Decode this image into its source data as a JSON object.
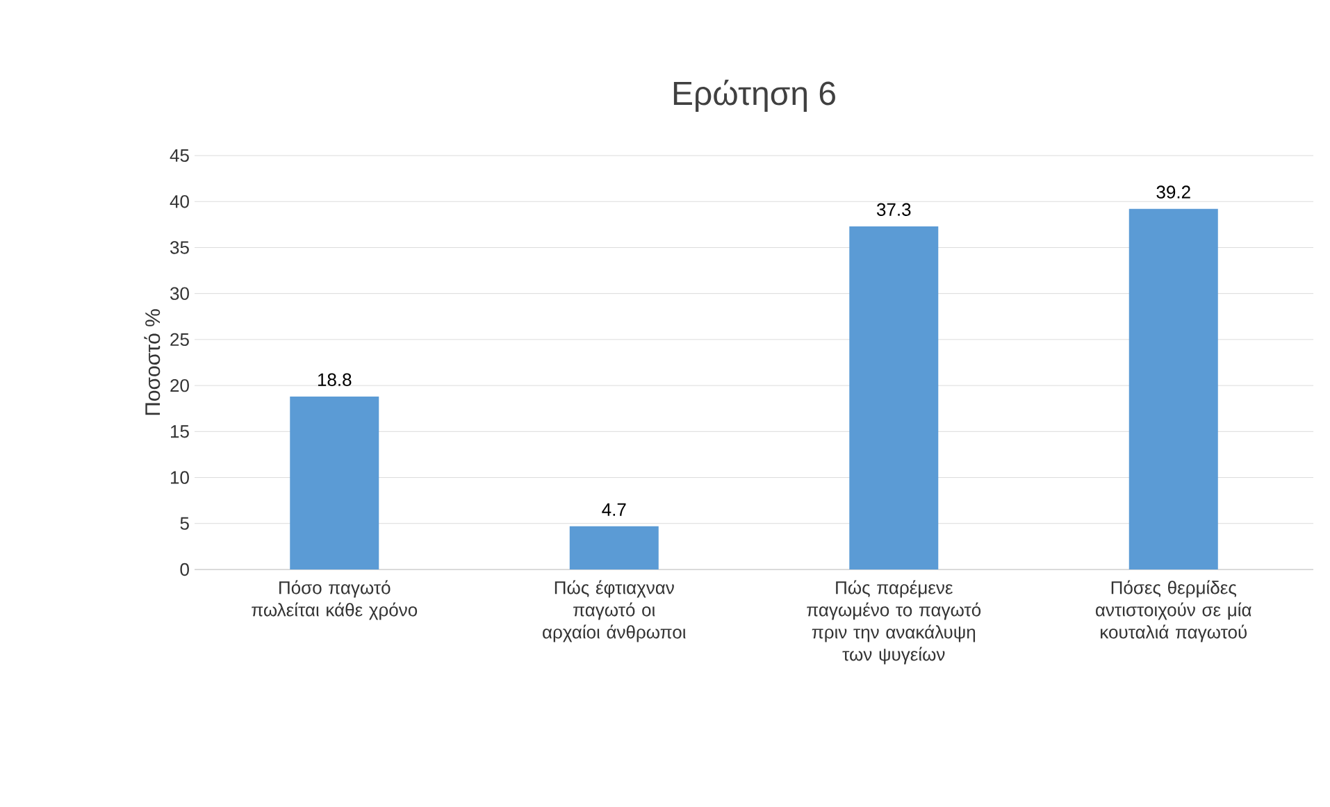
{
  "chart_data": {
    "type": "bar",
    "title": "Ερώτηση 6",
    "ylabel": "Ποσοστό %",
    "categories": [
      "Πόσο παγωτό πωλείται κάθε χρόνο",
      "Πώς έφτιαχναν παγωτό οι αρχαίοι άνθρωποι",
      "Πώς παρέμενε παγωμένο το παγωτό πριν την ανακάλυψη των ψυγείων",
      "Πόσες θερμίδες αντιστοιχούν σε μία κουταλιά παγωτού"
    ],
    "values": [
      18.8,
      4.7,
      37.3,
      39.2
    ],
    "color": "#5b9bd5",
    "ylim": [
      0,
      45
    ],
    "yticks": [
      0,
      5,
      10,
      15,
      20,
      25,
      30,
      35,
      40,
      45
    ],
    "grid": "y",
    "data_labels": true
  }
}
